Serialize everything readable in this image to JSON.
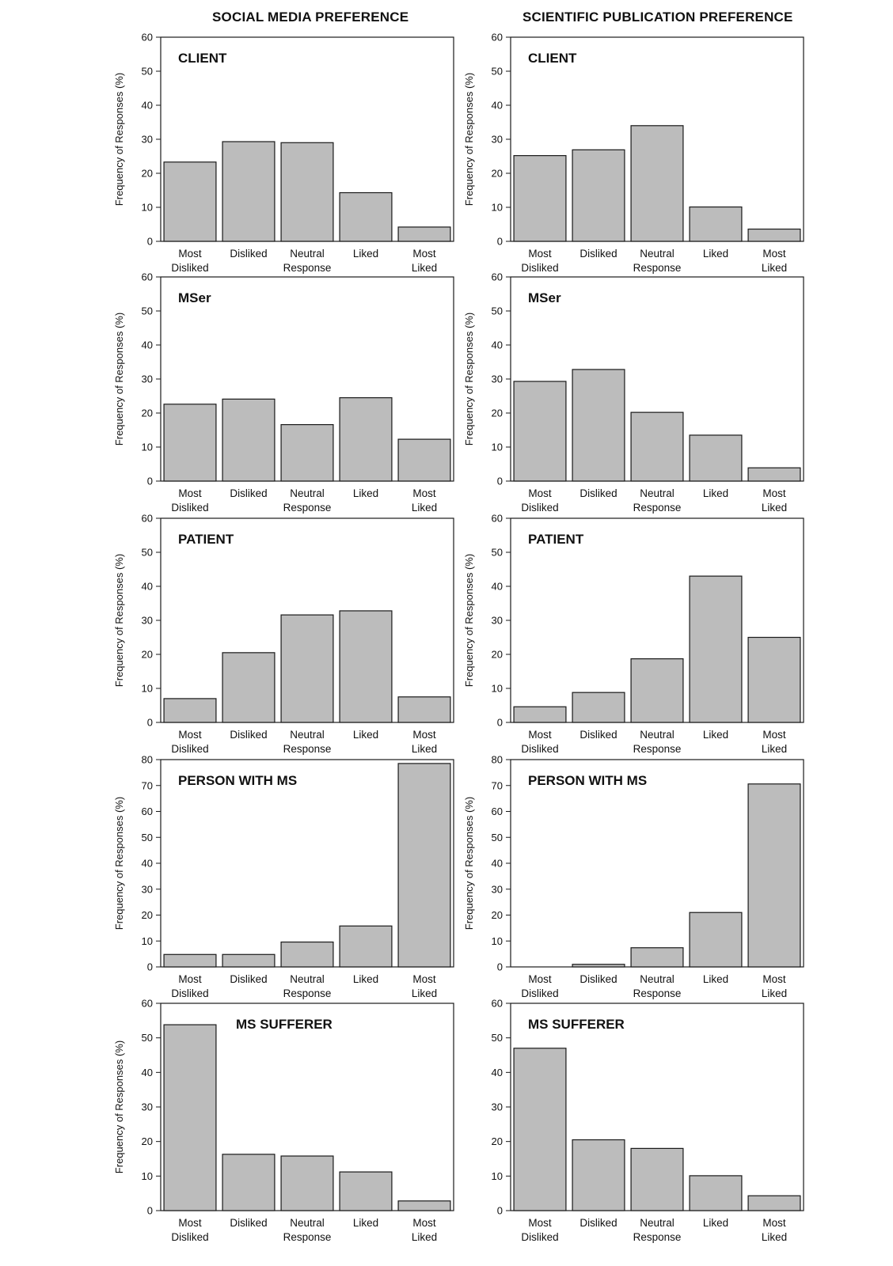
{
  "column_titles": {
    "left": "SOCIAL MEDIA PREFERENCE",
    "right": "SCIENTIFIC PUBLICATION PREFERENCE"
  },
  "colors": {
    "bar_fill": "#bcbcbc",
    "bar_stroke": "#1a1a1a"
  },
  "chart_data": [
    {
      "type": "bar",
      "column": "left",
      "title": "CLIENT",
      "ylabel": "Frequency of Responses (%)",
      "ylim": [
        0,
        60
      ],
      "yticks": [
        0,
        10,
        20,
        30,
        40,
        50,
        60
      ],
      "categories": [
        [
          "Most",
          "Disliked"
        ],
        [
          "Disliked"
        ],
        [
          "Neutral",
          "Response"
        ],
        [
          "Liked"
        ],
        [
          "Most",
          "Liked"
        ]
      ],
      "values": [
        23.3,
        29.3,
        29.0,
        14.3,
        4.2
      ]
    },
    {
      "type": "bar",
      "column": "right",
      "title": "CLIENT",
      "ylabel": "Frequency of Responses (%)",
      "ylim": [
        0,
        60
      ],
      "yticks": [
        0,
        10,
        20,
        30,
        40,
        50,
        60
      ],
      "categories": [
        [
          "Most",
          "Disliked"
        ],
        [
          "Disliked"
        ],
        [
          "Neutral",
          "Response"
        ],
        [
          "Liked"
        ],
        [
          "Most",
          "Liked"
        ]
      ],
      "values": [
        25.2,
        26.9,
        34.0,
        10.1,
        3.6
      ]
    },
    {
      "type": "bar",
      "column": "left",
      "title": "MSer",
      "ylabel": "Frequency of Responses (%)",
      "ylim": [
        0,
        60
      ],
      "yticks": [
        0,
        10,
        20,
        30,
        40,
        50,
        60
      ],
      "categories": [
        [
          "Most",
          "Disliked"
        ],
        [
          "Disliked"
        ],
        [
          "Neutral",
          "Response"
        ],
        [
          "Liked"
        ],
        [
          "Most",
          "Liked"
        ]
      ],
      "values": [
        22.6,
        24.1,
        16.6,
        24.5,
        12.3
      ]
    },
    {
      "type": "bar",
      "column": "right",
      "title": "MSer",
      "ylabel": "Frequency of Responses (%)",
      "ylim": [
        0,
        60
      ],
      "yticks": [
        0,
        10,
        20,
        30,
        40,
        50,
        60
      ],
      "categories": [
        [
          "Most",
          "Disliked"
        ],
        [
          "Disliked"
        ],
        [
          "Neutral",
          "Response"
        ],
        [
          "Liked"
        ],
        [
          "Most",
          "Liked"
        ]
      ],
      "values": [
        29.3,
        32.8,
        20.2,
        13.5,
        3.9
      ]
    },
    {
      "type": "bar",
      "column": "left",
      "title": "PATIENT",
      "ylabel": "Frequency of Responses (%)",
      "ylim": [
        0,
        60
      ],
      "yticks": [
        0,
        10,
        20,
        30,
        40,
        50,
        60
      ],
      "categories": [
        [
          "Most",
          "Disliked"
        ],
        [
          "Disliked"
        ],
        [
          "Neutral",
          "Response"
        ],
        [
          "Liked"
        ],
        [
          "Most",
          "Liked"
        ]
      ],
      "values": [
        7.0,
        20.5,
        31.6,
        32.8,
        7.5
      ]
    },
    {
      "type": "bar",
      "column": "right",
      "title": "PATIENT",
      "ylabel": "Frequency of Responses (%)",
      "ylim": [
        0,
        60
      ],
      "yticks": [
        0,
        10,
        20,
        30,
        40,
        50,
        60
      ],
      "categories": [
        [
          "Most",
          "Disliked"
        ],
        [
          "Disliked"
        ],
        [
          "Neutral",
          "Response"
        ],
        [
          "Liked"
        ],
        [
          "Most",
          "Liked"
        ]
      ],
      "values": [
        4.6,
        8.8,
        18.7,
        43.0,
        25.0
      ]
    },
    {
      "type": "bar",
      "column": "left",
      "title": "PERSON WITH MS",
      "ylabel": "Frequency of Responses (%)",
      "ylim": [
        0,
        80
      ],
      "yticks": [
        0,
        10,
        20,
        30,
        40,
        50,
        60,
        70,
        80
      ],
      "categories": [
        [
          "Most",
          "Disliked"
        ],
        [
          "Disliked"
        ],
        [
          "Neutral",
          "Response"
        ],
        [
          "Liked"
        ],
        [
          "Most",
          "Liked"
        ]
      ],
      "values": [
        4.8,
        4.8,
        9.6,
        15.8,
        78.5
      ]
    },
    {
      "type": "bar",
      "column": "right",
      "title": "PERSON WITH MS",
      "ylabel": "Frequency of Responses (%)",
      "ylim": [
        0,
        80
      ],
      "yticks": [
        0,
        10,
        20,
        30,
        40,
        50,
        60,
        70,
        80
      ],
      "categories": [
        [
          "Most",
          "Disliked"
        ],
        [
          "Disliked"
        ],
        [
          "Neutral",
          "Response"
        ],
        [
          "Liked"
        ],
        [
          "Most",
          "Liked"
        ]
      ],
      "values": [
        0,
        1.0,
        7.4,
        21.0,
        70.6
      ]
    },
    {
      "type": "bar",
      "column": "left",
      "title": "MS SUFFERER",
      "ylabel": "Frequency of Responses (%)",
      "ylim": [
        0,
        60
      ],
      "yticks": [
        0,
        10,
        20,
        30,
        40,
        50,
        60
      ],
      "categories": [
        [
          "Most",
          "Disliked"
        ],
        [
          "Disliked"
        ],
        [
          "Neutral",
          "Response"
        ],
        [
          "Liked"
        ],
        [
          "Most",
          "Liked"
        ]
      ],
      "values": [
        53.8,
        16.3,
        15.8,
        11.2,
        2.8
      ]
    },
    {
      "type": "bar",
      "column": "right",
      "title": "MS SUFFERER",
      "ylabel": "",
      "ylim": [
        0,
        60
      ],
      "yticks": [
        0,
        10,
        20,
        30,
        40,
        50,
        60
      ],
      "categories": [
        [
          "Most",
          "Disliked"
        ],
        [
          "Disliked"
        ],
        [
          "Neutral",
          "Response"
        ],
        [
          "Liked"
        ],
        [
          "Most",
          "Liked"
        ]
      ],
      "values": [
        47.0,
        20.5,
        18.0,
        10.1,
        4.3
      ]
    }
  ]
}
